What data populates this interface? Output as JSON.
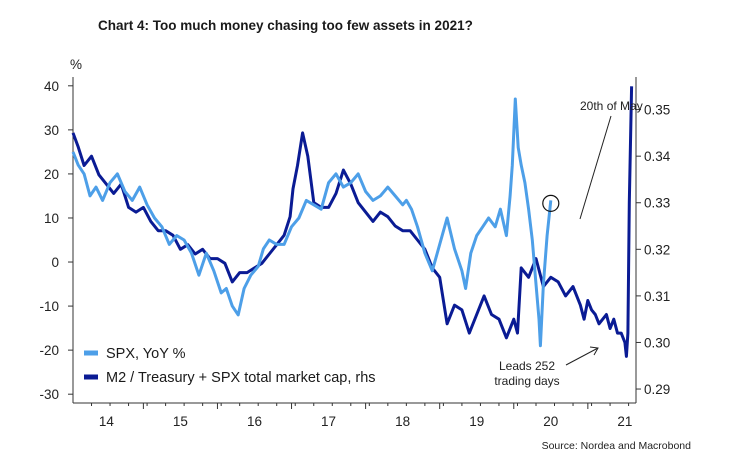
{
  "title": "Chart 4: Too much money chasing too few assets in 2021?",
  "source": "Source: Nordea and Macrobond",
  "colors": {
    "spx": "#4d9fe8",
    "m2": "#0a1b94",
    "axis": "#333333"
  },
  "chart_data": {
    "type": "line",
    "left_axis_unit": "%",
    "x_ticks": [
      "14",
      "15",
      "16",
      "17",
      "18",
      "19",
      "20",
      "21"
    ],
    "x_tick_years": [
      2014,
      2015,
      2016,
      2017,
      2018,
      2019,
      2020,
      2021
    ],
    "xlim": [
      2013.55,
      2021.15
    ],
    "ylim_left": [
      -32,
      42
    ],
    "yticks_left": [
      "40",
      "30",
      "20",
      "10",
      "0",
      "-10",
      "-20",
      "-30"
    ],
    "ylim_right": [
      0.287,
      0.357
    ],
    "yticks_right": [
      "0.35",
      "0.34",
      "0.33",
      "0.32",
      "0.31",
      "0.30",
      "0.29"
    ],
    "annotations": [
      {
        "text": "20th of May"
      },
      {
        "text": "Leads 252"
      },
      {
        "text": "trading days"
      }
    ],
    "series": [
      {
        "name": "SPX, YoY %",
        "axis": "left",
        "x": [
          2013.55,
          2013.62,
          2013.7,
          2013.78,
          2013.86,
          2013.95,
          2014.05,
          2014.15,
          2014.25,
          2014.35,
          2014.45,
          2014.55,
          2014.65,
          2014.75,
          2014.85,
          2014.95,
          2015.05,
          2015.15,
          2015.25,
          2015.35,
          2015.45,
          2015.55,
          2015.62,
          2015.7,
          2015.78,
          2015.86,
          2015.95,
          2016.05,
          2016.12,
          2016.2,
          2016.3,
          2016.4,
          2016.5,
          2016.6,
          2016.7,
          2016.8,
          2016.9,
          2017.0,
          2017.1,
          2017.2,
          2017.3,
          2017.4,
          2017.5,
          2017.6,
          2017.7,
          2017.8,
          2017.9,
          2018.0,
          2018.05,
          2018.12,
          2018.2,
          2018.3,
          2018.4,
          2018.5,
          2018.6,
          2018.7,
          2018.8,
          2018.85,
          2018.92,
          2019.0,
          2019.08,
          2019.16,
          2019.25,
          2019.32,
          2019.4,
          2019.45,
          2019.48,
          2019.52,
          2019.56,
          2019.6,
          2019.65,
          2019.7,
          2019.75,
          2019.8,
          2019.84,
          2019.86,
          2019.9,
          2019.95,
          2020.0
        ],
        "values": [
          25,
          22,
          20,
          15,
          17,
          14,
          18,
          20,
          16,
          14,
          17,
          13,
          10,
          8,
          4,
          6,
          5,
          2,
          -3,
          2,
          -2,
          -7,
          -6,
          -10,
          -12,
          -6,
          -3,
          -1,
          3,
          5,
          4,
          4,
          8,
          10,
          14,
          13,
          12,
          18,
          20,
          17,
          18,
          20,
          16,
          14,
          15,
          17,
          15,
          13,
          14,
          12,
          8,
          2,
          -2,
          4,
          10,
          3,
          -2,
          -6,
          2,
          6,
          8,
          10,
          8,
          12,
          6,
          15,
          22,
          37,
          26,
          22,
          18,
          12,
          5,
          -5,
          -13,
          -19,
          -5,
          6,
          14
        ]
      },
      {
        "name": "M2 / Treasury + SPX total market cap, rhs",
        "axis": "right",
        "x": [
          2013.55,
          2013.62,
          2013.7,
          2013.8,
          2013.9,
          2014.0,
          2014.1,
          2014.2,
          2014.3,
          2014.4,
          2014.5,
          2014.6,
          2014.7,
          2014.8,
          2014.9,
          2015.0,
          2015.1,
          2015.2,
          2015.3,
          2015.4,
          2015.5,
          2015.6,
          2015.7,
          2015.8,
          2015.9,
          2016.0,
          2016.1,
          2016.2,
          2016.3,
          2016.4,
          2016.48,
          2016.52,
          2016.58,
          2016.65,
          2016.72,
          2016.8,
          2016.9,
          2017.0,
          2017.1,
          2017.2,
          2017.3,
          2017.4,
          2017.5,
          2017.6,
          2017.7,
          2017.8,
          2017.9,
          2018.0,
          2018.1,
          2018.2,
          2018.3,
          2018.4,
          2018.5,
          2018.6,
          2018.7,
          2018.8,
          2018.9,
          2019.0,
          2019.1,
          2019.2,
          2019.3,
          2019.4,
          2019.5,
          2019.55,
          2019.6,
          2019.7,
          2019.8,
          2019.9,
          2020.0,
          2020.1,
          2020.2,
          2020.3,
          2020.4,
          2020.45,
          2020.5,
          2020.55,
          2020.6,
          2020.65,
          2020.7,
          2020.75,
          2020.8,
          2020.85,
          2020.9,
          2020.95,
          2021.0,
          2021.02,
          2021.04,
          2021.06,
          2021.09
        ],
        "values": [
          0.345,
          0.342,
          0.338,
          0.34,
          0.336,
          0.334,
          0.332,
          0.334,
          0.329,
          0.328,
          0.329,
          0.326,
          0.324,
          0.324,
          0.323,
          0.32,
          0.321,
          0.319,
          0.32,
          0.318,
          0.318,
          0.317,
          0.313,
          0.315,
          0.315,
          0.316,
          0.317,
          0.319,
          0.321,
          0.323,
          0.327,
          0.333,
          0.338,
          0.345,
          0.34,
          0.33,
          0.329,
          0.329,
          0.332,
          0.337,
          0.334,
          0.33,
          0.328,
          0.326,
          0.328,
          0.327,
          0.325,
          0.324,
          0.324,
          0.322,
          0.32,
          0.316,
          0.314,
          0.304,
          0.308,
          0.307,
          0.302,
          0.306,
          0.31,
          0.306,
          0.305,
          0.301,
          0.305,
          0.302,
          0.316,
          0.314,
          0.318,
          0.312,
          0.314,
          0.313,
          0.31,
          0.312,
          0.308,
          0.305,
          0.309,
          0.307,
          0.306,
          0.304,
          0.305,
          0.306,
          0.303,
          0.305,
          0.302,
          0.302,
          0.3,
          0.297,
          0.302,
          0.33,
          0.355
        ]
      }
    ]
  }
}
